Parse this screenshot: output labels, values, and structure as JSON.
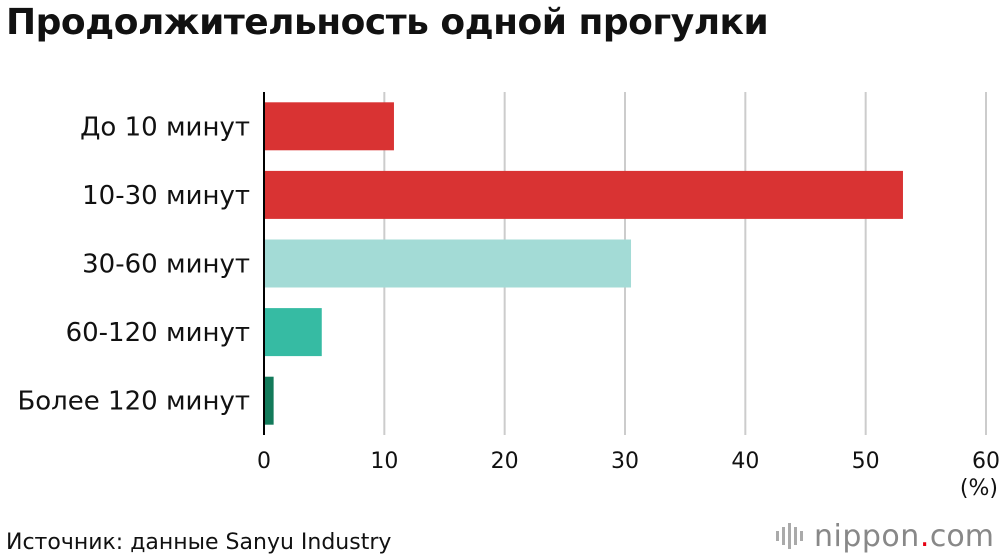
{
  "title": "Продолжительность одной прогулки",
  "source": "Источник: данные Sanyu Industry",
  "brand": {
    "name": "nippon",
    "dot": ".",
    "tld": "com",
    "icon": "nippon-logo-icon"
  },
  "colors": {
    "red": "#d93333",
    "light_teal": "#a3dbd6",
    "teal": "#36bba3",
    "dark_teal": "#137a5a",
    "grid": "#cccccc",
    "axis": "#000000"
  },
  "chart_data": {
    "type": "bar",
    "orientation": "horizontal",
    "categories": [
      "До 10 минут",
      "10-30 минут",
      "30-60 минут",
      "60-120 минут",
      "Более 120 минут"
    ],
    "values": [
      10.8,
      53.1,
      30.5,
      4.8,
      0.8
    ],
    "bar_colors": [
      "#d93333",
      "#d93333",
      "#a3dbd6",
      "#36bba3",
      "#137a5a"
    ],
    "xlim": [
      0,
      60
    ],
    "xticks": [
      0,
      10,
      20,
      30,
      40,
      50,
      60
    ],
    "xunit": "(%)",
    "grid": true
  }
}
